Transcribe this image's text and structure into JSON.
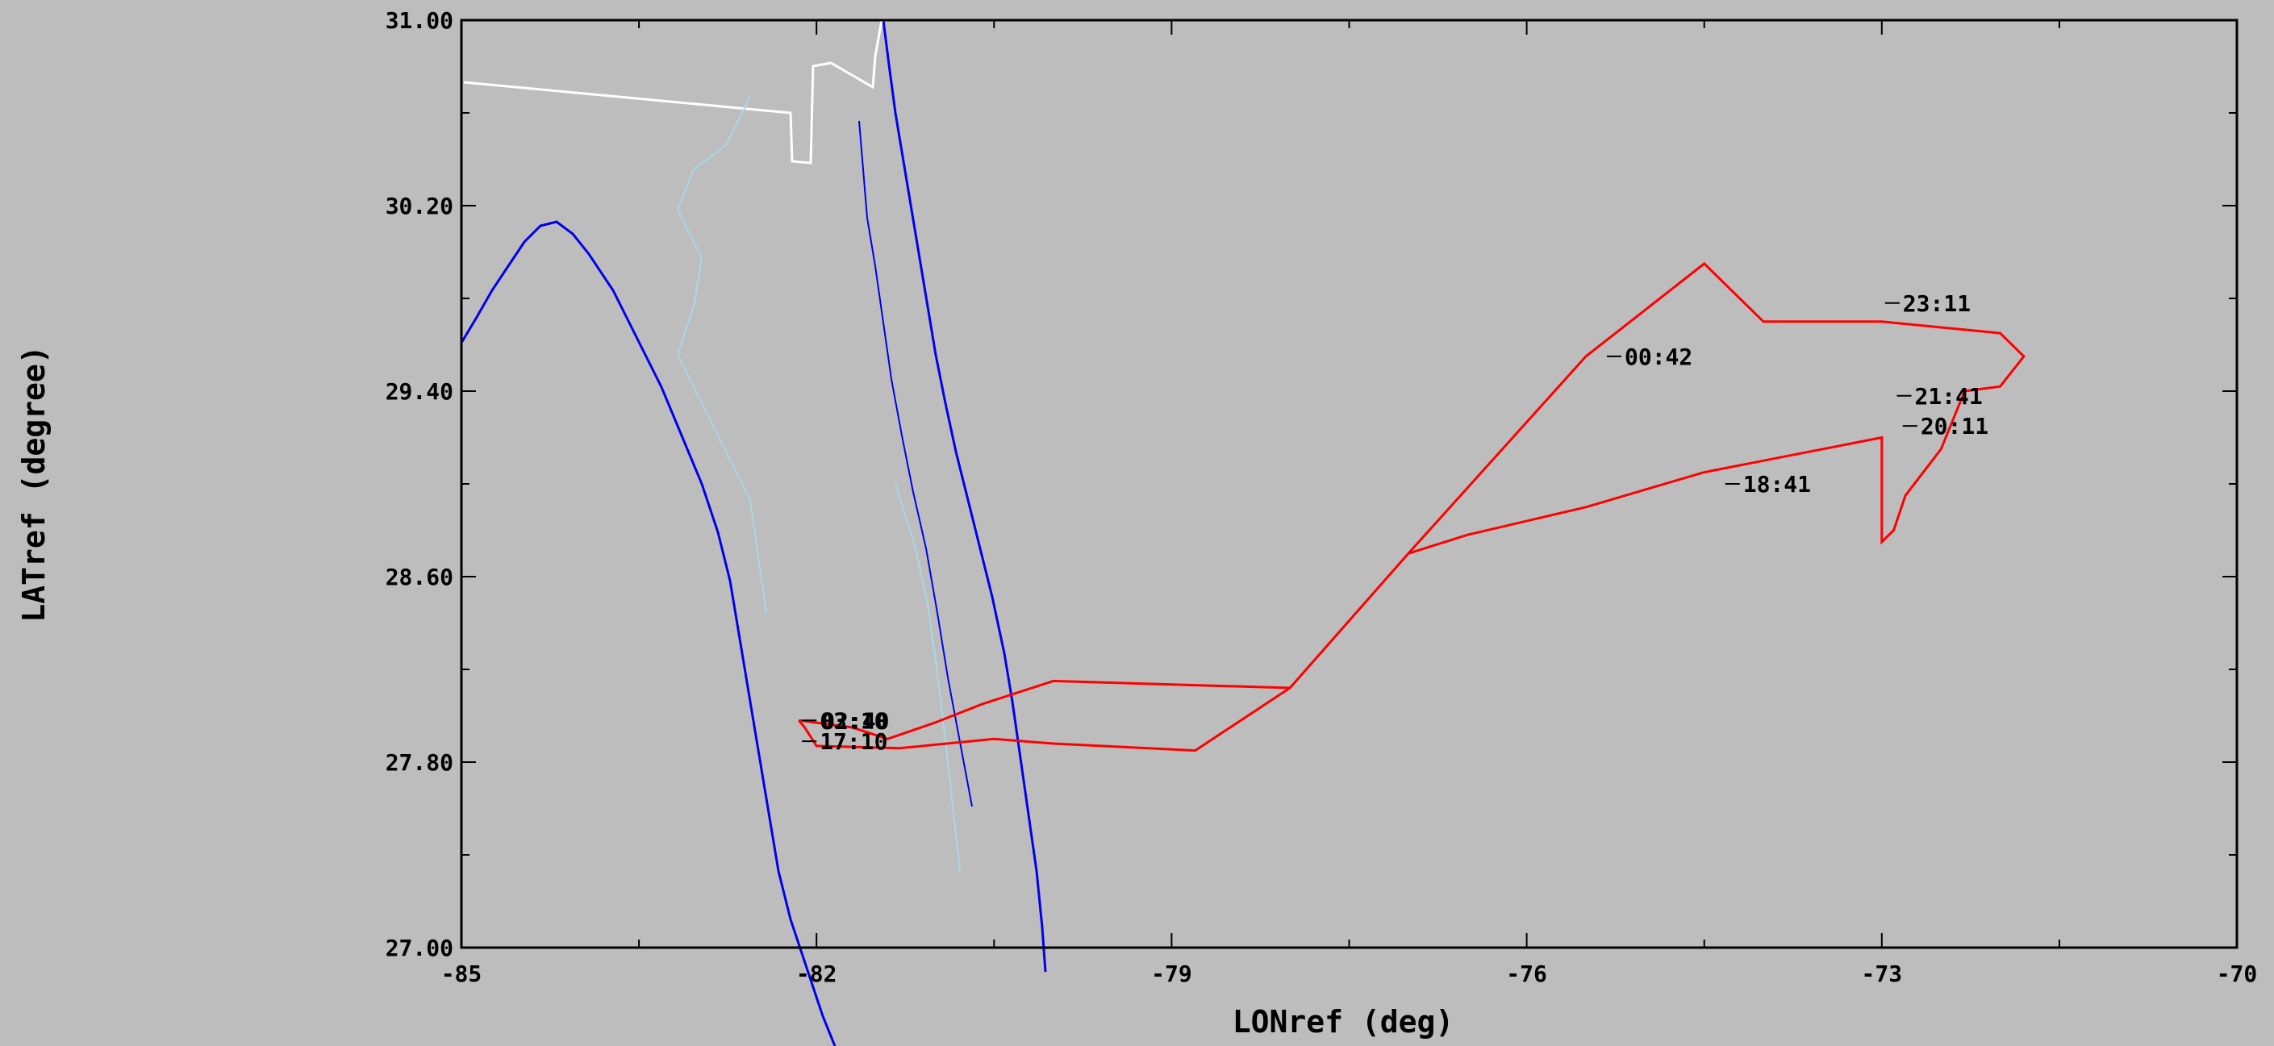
{
  "colors": {
    "background": "#bdbdbd",
    "frame": "#000000",
    "coastline": "#0000ee",
    "rivers": "#a8d8e8",
    "state_border": "#ffffff",
    "flight_track": "#ff0000"
  },
  "chart_data": {
    "type": "map",
    "xlabel": "LONref (deg)",
    "ylabel": "LATref (degree)",
    "xlim": [
      -85,
      -70
    ],
    "ylim": [
      27.0,
      31.0
    ],
    "x_ticks": [
      "-85",
      "-82",
      "-79",
      "-76",
      "-73",
      "-70"
    ],
    "y_ticks": [
      "31.00",
      "30.20",
      "29.40",
      "28.60",
      "27.80",
      "27.00"
    ],
    "grid": false,
    "flight_track": {
      "track": [
        [
          -82.15,
          27.98
        ],
        [
          -82.0,
          27.97
        ],
        [
          -81.7,
          27.95
        ],
        [
          -81.4,
          27.9
        ],
        [
          -81.0,
          27.97
        ],
        [
          -80.6,
          28.05
        ],
        [
          -80.0,
          28.15
        ],
        [
          -78.0,
          28.12
        ],
        [
          -77.0,
          28.7
        ],
        [
          -75.5,
          29.55
        ],
        [
          -74.5,
          29.95
        ],
        [
          -74.0,
          29.7
        ],
        [
          -73.0,
          29.7
        ],
        [
          -72.0,
          29.65
        ],
        [
          -71.8,
          29.55
        ],
        [
          -72.0,
          29.42
        ],
        [
          -72.3,
          29.4
        ],
        [
          -72.5,
          29.15
        ],
        [
          -72.8,
          28.95
        ],
        [
          -72.9,
          28.8
        ],
        [
          -73.0,
          28.75
        ],
        [
          -73.0,
          29.2
        ],
        [
          -74.5,
          29.05
        ],
        [
          -75.5,
          28.9
        ],
        [
          -76.5,
          28.78
        ],
        [
          -77.0,
          28.7
        ]
      ],
      "return": [
        [
          -78.0,
          28.12
        ],
        [
          -78.8,
          27.85
        ],
        [
          -80.0,
          27.88
        ],
        [
          -80.5,
          27.9
        ],
        [
          -81.3,
          27.86
        ],
        [
          -82.0,
          27.87
        ],
        [
          -82.1,
          27.95
        ],
        [
          -82.15,
          27.98
        ]
      ]
    },
    "annotations": [
      {
        "text": "03:10",
        "lon": -82.0,
        "lat": 27.98,
        "overlap": "02:40"
      },
      {
        "text": "17:10",
        "lon": -82.0,
        "lat": 27.89
      },
      {
        "text": "00:42",
        "lon": -75.2,
        "lat": 29.55
      },
      {
        "text": "18:41",
        "lon": -74.2,
        "lat": 29.0
      },
      {
        "text": "23:11",
        "lon": -72.85,
        "lat": 29.78
      },
      {
        "text": "21:41",
        "lon": -72.75,
        "lat": 29.38
      },
      {
        "text": "20:11",
        "lon": -72.7,
        "lat": 29.25
      }
    ]
  }
}
